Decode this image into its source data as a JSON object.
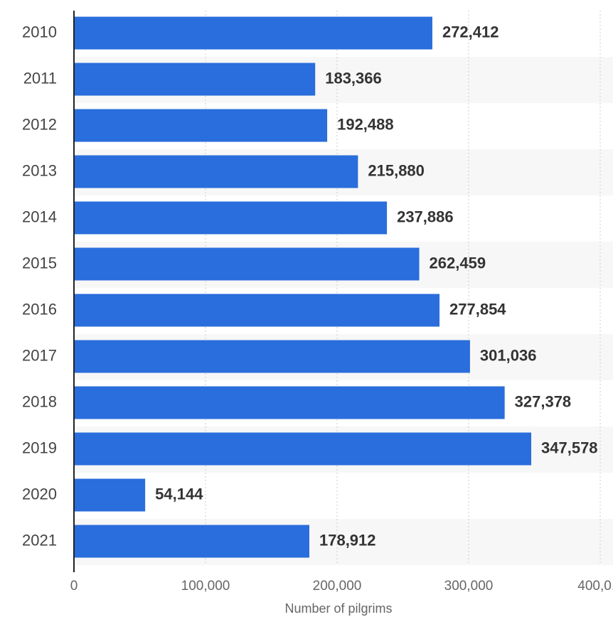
{
  "chart_data": {
    "type": "bar",
    "orientation": "horizontal",
    "x_label": "Number of pilgrims",
    "categories": [
      "2010",
      "2011",
      "2012",
      "2013",
      "2014",
      "2015",
      "2016",
      "2017",
      "2018",
      "2019",
      "2020",
      "2021"
    ],
    "values": [
      272412,
      183366,
      192488,
      215880,
      237886,
      262459,
      277854,
      301036,
      327378,
      347578,
      54144,
      178912
    ],
    "value_labels": [
      "272,412",
      "183,366",
      "192,488",
      "215,880",
      "237,886",
      "262,459",
      "277,854",
      "301,036",
      "327,378",
      "347,578",
      "54,144",
      "178,912"
    ],
    "color": "#2a6ddc",
    "xlim": [
      0,
      400000
    ],
    "xticks": [
      0,
      {
        "value": 100000,
        "label": "100,000"
      },
      {
        "value": 200000,
        "label": "200,000"
      },
      {
        "value": 300000,
        "label": "300,000"
      },
      {
        "value": 400000,
        "label": "400,0..."
      }
    ],
    "grid": true
  }
}
